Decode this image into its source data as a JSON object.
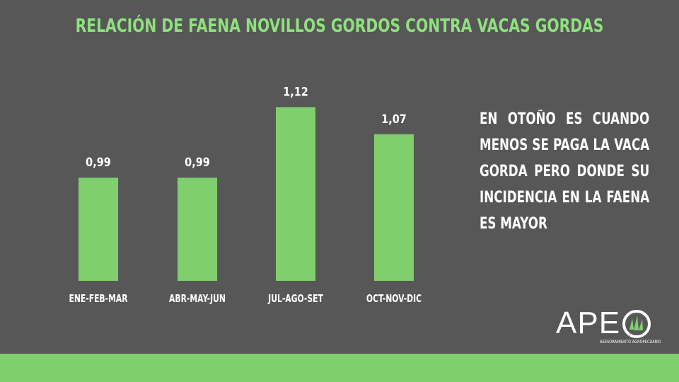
{
  "title": "RELACIÓN DE FAENA NOVILLOS GORDOS CONTRA VACAS GORDAS",
  "note": "EN OTOÑO ES CUANDO MENOS SE PAGA LA VACA GORDA PERO DONDE SU INCIDENCIA EN LA FAENA ES MAYOR",
  "logo": {
    "text": "APE",
    "subtitle": "ASESORAMIENTO AGROPECUARIO"
  },
  "colors": {
    "background": "#575757",
    "accent": "#8fe07f",
    "bar": "#7fcf6c",
    "footer": "#7fcf6c"
  },
  "chart_data": {
    "type": "bar",
    "categories": [
      "ENE-FEB-MAR",
      "ABR-MAY-JUN",
      "JUL-AGO-SET",
      "OCT-NOV-DIC"
    ],
    "values": [
      0.99,
      0.99,
      1.12,
      1.07
    ],
    "value_labels": [
      "0,99",
      "0,99",
      "1,12",
      "1,07"
    ],
    "title": "RELACIÓN DE FAENA NOVILLOS GORDOS CONTRA VACAS GORDAS",
    "xlabel": "",
    "ylabel": "",
    "grid": false,
    "legend": "none"
  }
}
